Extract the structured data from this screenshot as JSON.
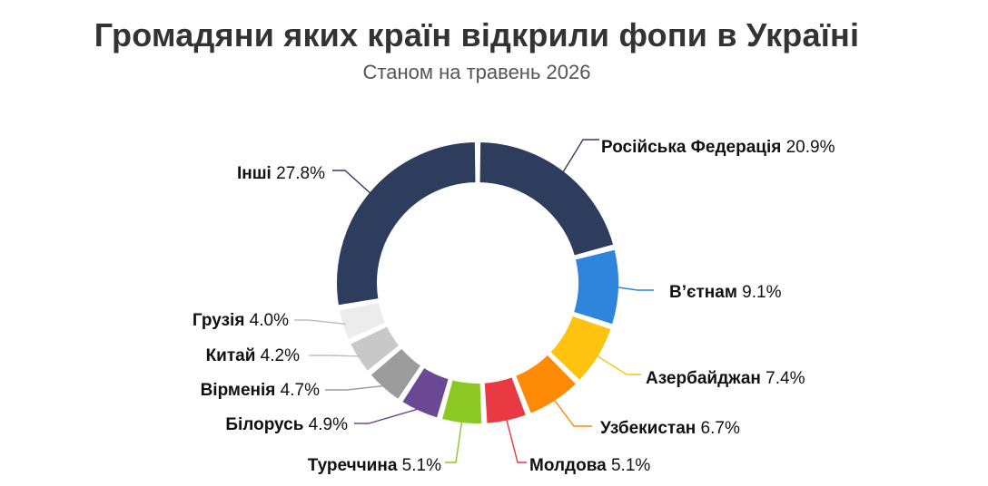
{
  "chart_data": {
    "type": "pie",
    "variant": "donut",
    "title": "Громадяни яких країн відкрили фопи в Україні",
    "subtitle": "Станом на травень 2026",
    "slices": [
      {
        "label": "Російська Федерація",
        "value": 20.9,
        "display": "20.9%",
        "color": "#2e3c5e"
      },
      {
        "label": "В’єтнам",
        "value": 9.1,
        "display": "9.1%",
        "color": "#2f84dc"
      },
      {
        "label": "Азербайджан",
        "value": 7.4,
        "display": "7.4%",
        "color": "#ffc20f"
      },
      {
        "label": "Узбекистан",
        "value": 6.7,
        "display": "6.7%",
        "color": "#ff8a05"
      },
      {
        "label": "Молдова",
        "value": 5.1,
        "display": "5.1%",
        "color": "#e93a43"
      },
      {
        "label": "Туреччина",
        "value": 5.1,
        "display": "5.1%",
        "color": "#8cc824"
      },
      {
        "label": "Білорусь",
        "value": 4.9,
        "display": "4.9%",
        "color": "#6a4894"
      },
      {
        "label": "Вірменія",
        "value": 4.7,
        "display": "4.7%",
        "color": "#9c9c9c"
      },
      {
        "label": "Китай",
        "value": 4.2,
        "display": "4.2%",
        "color": "#c8c8c8"
      },
      {
        "label": "Грузія",
        "value": 4.0,
        "display": "4.0%",
        "color": "#ececec"
      },
      {
        "label": "Інші",
        "value": 27.8,
        "display": "27.8%",
        "color": "#2e3c5e"
      }
    ]
  }
}
